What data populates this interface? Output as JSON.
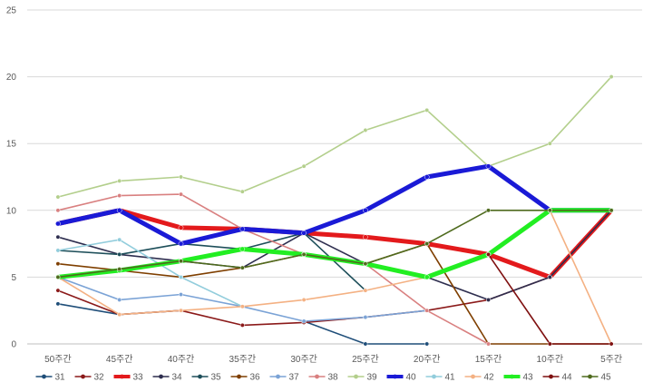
{
  "chart_data": {
    "type": "line",
    "title": "",
    "xlabel": "",
    "ylabel": "",
    "ylim": [
      0,
      25
    ],
    "yticks": [
      0,
      5,
      10,
      15,
      20,
      25
    ],
    "grid": "horizontal",
    "legend_position": "bottom",
    "categories": [
      "50주간",
      "45주간",
      "40주간",
      "35주간",
      "30주간",
      "25주간",
      "20주간",
      "15주간",
      "10주간",
      "5주간"
    ],
    "series": [
      {
        "name": "31",
        "color": "#1f4e79",
        "values": [
          3,
          2.2,
          2.5,
          null,
          1.7,
          0,
          0,
          null,
          null,
          null
        ]
      },
      {
        "name": "32",
        "color": "#8b1a1a",
        "values": [
          4,
          2.2,
          2.5,
          1.4,
          1.6,
          2,
          2.5,
          3.3,
          5,
          10
        ]
      },
      {
        "name": "33",
        "color": "#e31a1c",
        "values": [
          9,
          10,
          8.7,
          8.6,
          8.3,
          8,
          7.5,
          6.7,
          5,
          10
        ]
      },
      {
        "name": "34",
        "color": "#2e2e4f",
        "values": [
          8,
          6.7,
          6.2,
          5.7,
          8.3,
          6,
          5,
          3.3,
          5,
          10
        ]
      },
      {
        "name": "35",
        "color": "#1e4f5a",
        "values": [
          7,
          6.7,
          7.5,
          7.1,
          8.3,
          4,
          null,
          null,
          null,
          null
        ]
      },
      {
        "name": "36",
        "color": "#7f3f00",
        "values": [
          6,
          5.5,
          5,
          5.7,
          6.7,
          6,
          7.5,
          0,
          0,
          0
        ]
      },
      {
        "name": "37",
        "color": "#7ba3d6",
        "values": [
          5,
          3.3,
          3.7,
          2.8,
          1.7,
          2,
          2.5,
          null,
          null,
          null
        ]
      },
      {
        "name": "38",
        "color": "#d98080",
        "values": [
          10,
          11.1,
          11.2,
          8.6,
          6.7,
          6,
          2.5,
          0,
          null,
          null
        ]
      },
      {
        "name": "39",
        "color": "#b3cf8c",
        "values": [
          11,
          12.2,
          12.5,
          11.4,
          13.3,
          16,
          17.5,
          13.3,
          15,
          20
        ]
      },
      {
        "name": "40",
        "color": "#1a1ad6",
        "values": [
          9,
          10,
          7.5,
          8.6,
          8.3,
          10,
          12.5,
          13.3,
          10,
          10
        ]
      },
      {
        "name": "41",
        "color": "#92cddc",
        "values": [
          7,
          7.8,
          5,
          2.8,
          null,
          null,
          null,
          null,
          null,
          null
        ]
      },
      {
        "name": "42",
        "color": "#f4b183",
        "values": [
          5,
          2.2,
          2.5,
          2.8,
          3.3,
          4,
          5,
          6.7,
          10,
          0
        ]
      },
      {
        "name": "43",
        "color": "#22ee22",
        "values": [
          5,
          5.5,
          6.2,
          7.1,
          6.7,
          6,
          5,
          6.7,
          10,
          10
        ]
      },
      {
        "name": "44",
        "color": "#7f1010",
        "values": [
          null,
          null,
          null,
          null,
          null,
          null,
          null,
          6.7,
          0,
          0
        ]
      },
      {
        "name": "45",
        "color": "#4f6b1e",
        "values": [
          5,
          5.6,
          6.2,
          5.7,
          6.7,
          6,
          7.5,
          10,
          10,
          10
        ]
      }
    ]
  }
}
